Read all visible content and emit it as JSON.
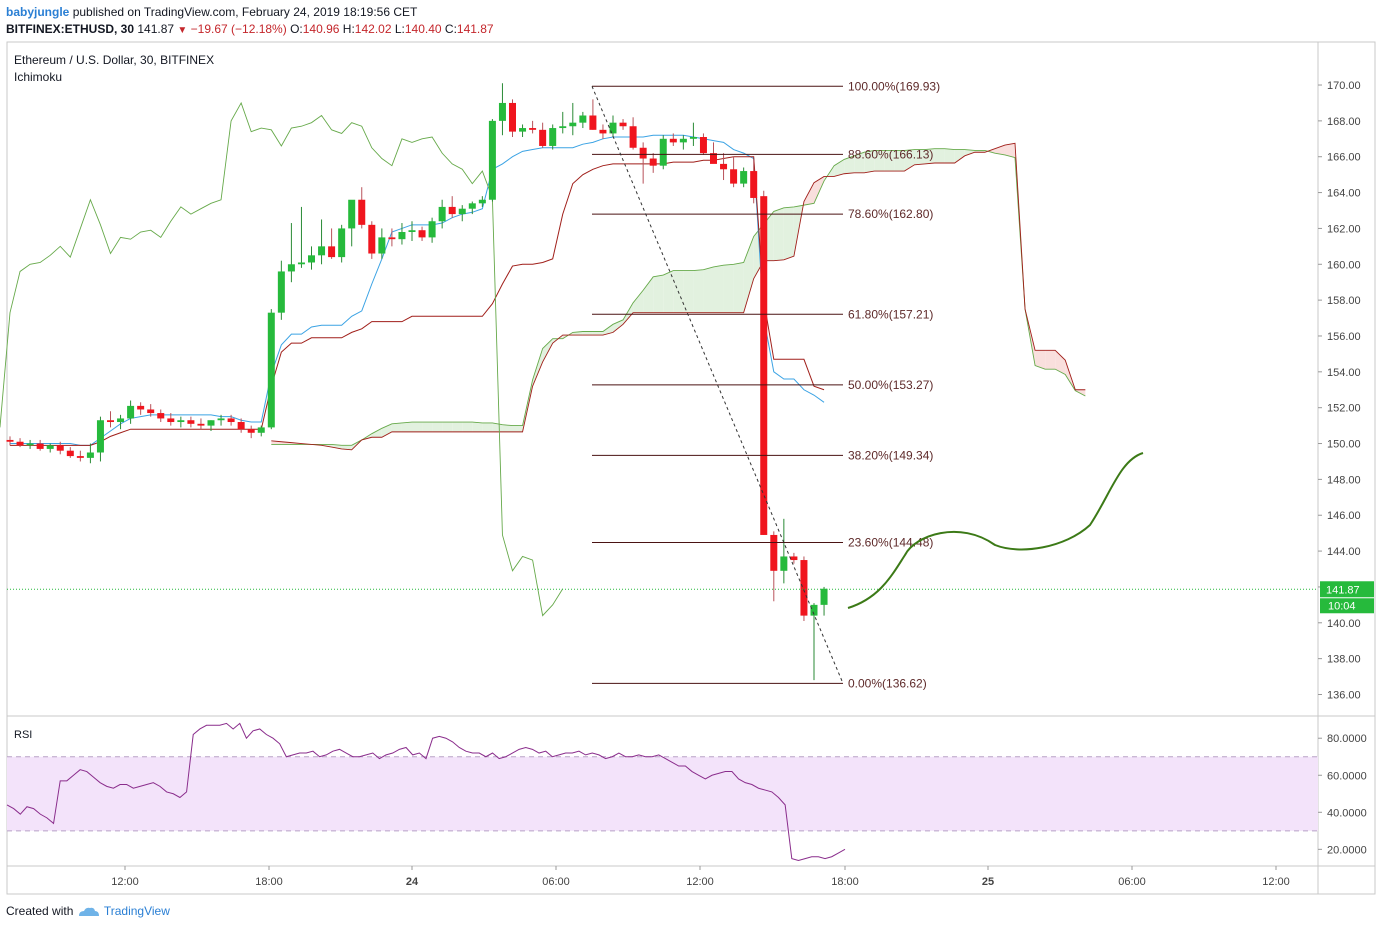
{
  "header": {
    "user": "babyjungle",
    "published_text": "published on TradingView.com, February 24, 2019 18:19:56 CET",
    "symbol": "BITFINEX:ETHUSD, 30",
    "last": "141.87",
    "change": "−19.67 (−12.18%)",
    "o_label": "O:",
    "o_value": "140.96",
    "h_label": "H:",
    "h_value": "142.02",
    "l_label": "L:",
    "l_value": "140.40",
    "c_label": "C:",
    "c_value": "141.87"
  },
  "footer": {
    "created_with": "Created with",
    "brand": "TradingView"
  },
  "colors": {
    "up": "#26ba3c",
    "down": "#f0151e",
    "wick": "#555555",
    "tenkan": "#3ba3e4",
    "kijun": "#a01f1a",
    "chikou": "#66a94a",
    "cloud_bull": "#e2f1df",
    "cloud_bear": "#f9dfdd",
    "fib_line": "#4a1313",
    "fib_text": "#5e2a2a",
    "rsi_line": "#8a2d8c",
    "rsi_band": "#f3e3fa",
    "projection": "#3c7a17",
    "price_tag": "#26ba3c"
  },
  "chart_data": [
    {
      "type": "candlestick",
      "title": "Ethereum / U.S. Dollar, 30, BITFINEX",
      "indicator": "Ichimoku",
      "x_labels": [
        "12:00",
        "18:00",
        "24",
        "06:00",
        "12:00",
        "18:00",
        "25",
        "06:00",
        "12:00"
      ],
      "y_ticks": [
        "136.00",
        "138.00",
        "140.00",
        "142.00",
        "144.00",
        "146.00",
        "148.00",
        "150.00",
        "152.00",
        "154.00",
        "156.00",
        "158.00",
        "160.00",
        "162.00",
        "164.00",
        "166.00",
        "168.00",
        "170.00"
      ],
      "ylim": [
        134.8,
        172.4
      ],
      "last_price_label": "141.87",
      "countdown_label": "10:04",
      "last_price": 141.87,
      "candles": [
        [
          150.2,
          150.4,
          149.9,
          150.1
        ],
        [
          150.1,
          150.3,
          149.8,
          149.9
        ],
        [
          149.9,
          150.2,
          149.7,
          150.0
        ],
        [
          150.0,
          150.2,
          149.6,
          149.7
        ],
        [
          149.7,
          150.0,
          149.5,
          149.9
        ],
        [
          149.9,
          150.1,
          149.4,
          149.6
        ],
        [
          149.6,
          149.8,
          149.2,
          149.3
        ],
        [
          149.3,
          149.6,
          149.0,
          149.2
        ],
        [
          149.2,
          150.0,
          148.9,
          149.5
        ],
        [
          149.5,
          151.5,
          149.0,
          151.3
        ],
        [
          151.3,
          151.8,
          150.9,
          151.2
        ],
        [
          151.2,
          151.6,
          150.8,
          151.4
        ],
        [
          151.4,
          152.4,
          151.1,
          152.1
        ],
        [
          152.1,
          152.3,
          151.6,
          151.9
        ],
        [
          151.9,
          152.2,
          151.5,
          151.7
        ],
        [
          151.7,
          151.9,
          151.2,
          151.4
        ],
        [
          151.4,
          151.7,
          151.0,
          151.2
        ],
        [
          151.2,
          151.5,
          150.9,
          151.3
        ],
        [
          151.3,
          151.5,
          150.9,
          151.1
        ],
        [
          151.1,
          151.4,
          150.8,
          151.0
        ],
        [
          151.0,
          151.3,
          150.7,
          151.3
        ],
        [
          151.3,
          151.6,
          151.0,
          151.4
        ],
        [
          151.4,
          151.6,
          151.0,
          151.2
        ],
        [
          151.2,
          151.4,
          150.6,
          150.8
        ],
        [
          150.8,
          151.0,
          150.3,
          150.6
        ],
        [
          150.6,
          151.0,
          150.4,
          150.9
        ],
        [
          150.9,
          157.5,
          150.8,
          157.3
        ],
        [
          157.3,
          160.2,
          156.9,
          159.6
        ],
        [
          159.6,
          162.3,
          159.0,
          160.0
        ],
        [
          160.0,
          163.2,
          159.8,
          160.1
        ],
        [
          160.1,
          161.0,
          159.7,
          160.5
        ],
        [
          160.5,
          162.5,
          160.0,
          161.0
        ],
        [
          161.0,
          162.0,
          160.3,
          160.4
        ],
        [
          160.4,
          162.2,
          160.1,
          162.0
        ],
        [
          162.0,
          163.5,
          161.0,
          163.6
        ],
        [
          163.6,
          164.3,
          162.0,
          162.2
        ],
        [
          162.2,
          162.4,
          160.3,
          160.6
        ],
        [
          160.6,
          162.0,
          160.3,
          161.5
        ],
        [
          161.5,
          162.0,
          161.0,
          161.4
        ],
        [
          161.4,
          162.3,
          161.1,
          161.8
        ],
        [
          161.8,
          162.4,
          161.3,
          161.9
        ],
        [
          161.9,
          162.1,
          161.3,
          161.5
        ],
        [
          161.5,
          162.6,
          161.2,
          162.4
        ],
        [
          162.4,
          163.6,
          162.0,
          163.2
        ],
        [
          163.2,
          163.8,
          162.6,
          162.8
        ],
        [
          162.8,
          163.3,
          162.4,
          163.1
        ],
        [
          163.1,
          163.5,
          162.8,
          163.4
        ],
        [
          163.4,
          163.8,
          163.2,
          163.6
        ],
        [
          163.6,
          168.1,
          163.5,
          168.0
        ],
        [
          168.0,
          170.1,
          167.2,
          169.0
        ],
        [
          169.0,
          169.2,
          167.1,
          167.4
        ],
        [
          167.4,
          167.8,
          167.1,
          167.6
        ],
        [
          167.6,
          168.0,
          167.3,
          167.5
        ],
        [
          167.5,
          167.9,
          166.5,
          166.6
        ],
        [
          166.6,
          167.8,
          166.4,
          167.6
        ],
        [
          167.6,
          168.5,
          167.3,
          167.7
        ],
        [
          167.7,
          169.0,
          167.2,
          167.9
        ],
        [
          167.9,
          168.5,
          167.6,
          168.3
        ],
        [
          168.3,
          169.2,
          167.5,
          167.5
        ],
        [
          167.5,
          167.8,
          167.0,
          167.3
        ],
        [
          167.3,
          168.3,
          167.1,
          167.9
        ],
        [
          167.9,
          168.1,
          167.5,
          167.7
        ],
        [
          167.7,
          168.2,
          166.4,
          166.5
        ],
        [
          166.5,
          166.8,
          164.5,
          165.9
        ],
        [
          165.9,
          166.2,
          165.1,
          165.5
        ],
        [
          165.5,
          167.2,
          165.3,
          167.0
        ],
        [
          167.0,
          167.3,
          166.6,
          166.8
        ],
        [
          166.8,
          167.2,
          166.4,
          167.0
        ],
        [
          167.0,
          167.9,
          166.6,
          167.1
        ],
        [
          167.1,
          167.3,
          166.1,
          166.2
        ],
        [
          166.2,
          166.8,
          165.9,
          165.6
        ],
        [
          165.6,
          166.2,
          164.7,
          165.3
        ],
        [
          165.3,
          166.0,
          164.3,
          164.5
        ],
        [
          164.5,
          165.4,
          164.3,
          165.2
        ],
        [
          165.2,
          165.8,
          163.4,
          163.7
        ],
        [
          163.8,
          164.1,
          144.9,
          144.9
        ],
        [
          144.9,
          145.1,
          141.2,
          142.9
        ],
        [
          142.9,
          145.8,
          142.2,
          143.7
        ],
        [
          143.7,
          143.9,
          143.3,
          143.5
        ],
        [
          143.5,
          143.7,
          140.1,
          140.4
        ],
        [
          140.4,
          141.1,
          136.8,
          141.0
        ],
        [
          141.0,
          142.0,
          140.4,
          141.9
        ]
      ],
      "tenkan": [
        150.0,
        150.0,
        150.0,
        150.0,
        150.0,
        150.0,
        150.0,
        149.9,
        149.9,
        150.3,
        150.7,
        151.1,
        151.4,
        151.5,
        151.6,
        151.6,
        151.6,
        151.6,
        151.6,
        151.6,
        151.6,
        151.5,
        151.5,
        151.3,
        151.2,
        151.2,
        153.9,
        155.5,
        156.1,
        156.1,
        156.5,
        156.6,
        156.6,
        156.6,
        157.1,
        157.4,
        158.9,
        160.3,
        161.8,
        162.0,
        162.2,
        162.2,
        162.2,
        162.3,
        162.6,
        162.8,
        162.9,
        163.1,
        165.3,
        165.6,
        166.0,
        166.3,
        166.4,
        166.5,
        166.5,
        166.5,
        166.5,
        166.7,
        166.8,
        167.0,
        167.1,
        167.1,
        167.1,
        167.1,
        167.2,
        167.2,
        167.2,
        167.2,
        167.1,
        167.0,
        166.9,
        166.8,
        166.4,
        166.2,
        165.9,
        157.0,
        154.0,
        153.6,
        153.6,
        153.0,
        152.7,
        152.3
      ],
      "kijun": [
        149.9,
        149.9,
        149.9,
        149.9,
        149.9,
        149.9,
        149.9,
        149.9,
        149.9,
        150.1,
        150.4,
        150.6,
        150.8,
        150.8,
        150.8,
        150.8,
        150.8,
        150.8,
        150.8,
        150.8,
        150.8,
        150.8,
        150.8,
        150.8,
        150.8,
        150.8,
        153.2,
        155.1,
        155.6,
        155.6,
        155.9,
        155.9,
        155.9,
        155.9,
        156.2,
        156.4,
        156.8,
        156.8,
        156.8,
        156.8,
        157.1,
        157.1,
        157.1,
        157.1,
        157.1,
        157.1,
        157.1,
        157.1,
        157.8,
        158.9,
        159.9,
        160.0,
        160.0,
        160.1,
        160.3,
        162.8,
        164.5,
        165.0,
        165.3,
        165.5,
        165.6,
        165.6,
        165.6,
        165.6,
        165.6,
        165.6,
        165.7,
        165.7,
        165.7,
        165.8,
        165.8,
        165.9,
        166.0,
        166.0,
        166.0,
        158.0,
        154.7,
        154.7,
        154.7,
        154.7,
        153.2,
        153.0
      ]
    },
    {
      "type": "fibonacci_retracement",
      "levels": [
        {
          "label": "100.00%(169.93)",
          "price": 169.93
        },
        {
          "label": "88.60%(166.13)",
          "price": 166.13
        },
        {
          "label": "78.60%(162.80)",
          "price": 162.8
        },
        {
          "label": "61.80%(157.21)",
          "price": 157.21
        },
        {
          "label": "50.00%(153.27)",
          "price": 153.27
        },
        {
          "label": "38.20%(149.34)",
          "price": 149.34
        },
        {
          "label": "23.60%(144.48)",
          "price": 144.48
        },
        {
          "label": "0.00%(136.62)",
          "price": 136.62
        }
      ]
    },
    {
      "type": "line",
      "title": "RSI",
      "y_ticks": [
        "20.0000",
        "40.0000",
        "60.0000",
        "80.0000"
      ],
      "ylim": [
        11,
        92
      ],
      "upper_band": 70,
      "lower_band": 30,
      "values": [
        44,
        42,
        39,
        43,
        42,
        39,
        37,
        34,
        57,
        57,
        60,
        63,
        62,
        59,
        56,
        54,
        53,
        55,
        55,
        53,
        54,
        55,
        56,
        54,
        51,
        50,
        48,
        51,
        82,
        85,
        87,
        87,
        87,
        88,
        85,
        88,
        80,
        84,
        85,
        82,
        80,
        77,
        70,
        71,
        72,
        72,
        73,
        70,
        71,
        73,
        74,
        72,
        70,
        70,
        71,
        72,
        69,
        71,
        72,
        74,
        75,
        71,
        72,
        69,
        80,
        81,
        80,
        78,
        75,
        73,
        72,
        72,
        70,
        72,
        69,
        70,
        72,
        74,
        75,
        74,
        72,
        73,
        70,
        71,
        72,
        72,
        73,
        71,
        72,
        71,
        69,
        70,
        72,
        70,
        70,
        71,
        70,
        70,
        71,
        69,
        67,
        65,
        65,
        62,
        60,
        58,
        60,
        61,
        62,
        62,
        58,
        56,
        55,
        53,
        52,
        51,
        48,
        44,
        15,
        14,
        15,
        16,
        16,
        15,
        16,
        18,
        20
      ]
    }
  ]
}
